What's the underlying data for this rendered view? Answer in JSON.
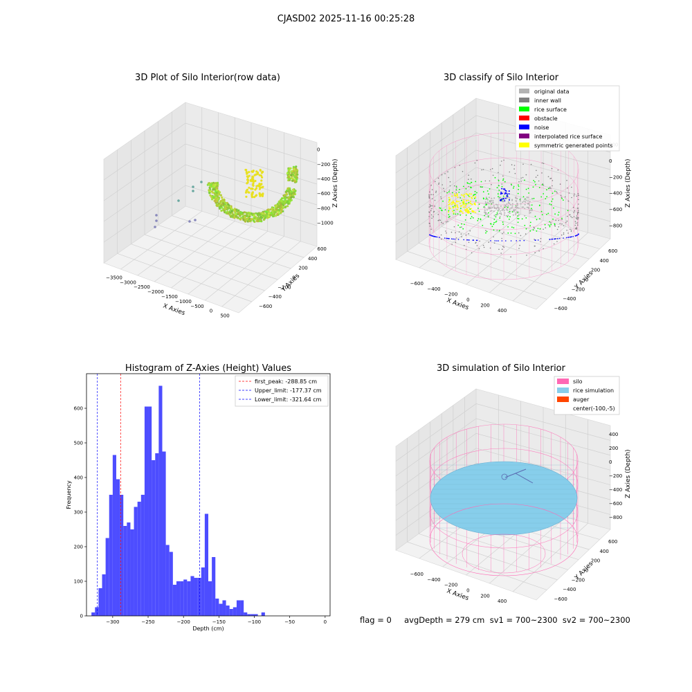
{
  "figure": {
    "suptitle": "CJASD02 2025-11-16 00:25:28",
    "footer": "flag = 0     avgDepth = 279 cm  sv1 = 700~2300  sv2 = 700~2300"
  },
  "colors": {
    "hist_bar": "#4d4dff",
    "first_peak": "#ff0000",
    "limit_line": "#0000ff",
    "silo": "#ff69b4",
    "rice_simulation": "#87ceeb",
    "auger": "#ff4500",
    "original_data": "#b3b3b3",
    "inner_wall": "#808080",
    "rice_surface": "#00ff00",
    "obstacle": "#ff0000",
    "noise": "#0000ff",
    "interpolated": "#800080",
    "symmetric": "#ffff00"
  },
  "chart_data": [
    {
      "type": "scatter",
      "projection": "3d",
      "title": "3D Plot of Silo Interior(row data)",
      "xlabel": "X Axies",
      "ylabel": "Y Axies",
      "zlabel": "Z Axies (Depth)",
      "xticks": [
        "−3500",
        "−3000",
        "−2500",
        "−2000",
        "−1500",
        "−1000",
        "−500",
        "0",
        "500"
      ],
      "yticks": [
        "−600",
        "−400",
        "−200",
        "0",
        "200",
        "400",
        "600"
      ],
      "zticks": [
        "0",
        "−200",
        "−400",
        "−600",
        "−800",
        "−1000"
      ],
      "grid": true
    },
    {
      "type": "scatter",
      "projection": "3d",
      "title": "3D classify of Silo Interior",
      "xlabel": "X Axies",
      "ylabel": "Y Axies",
      "zlabel": "Z Axies (Depth)",
      "xticks": [
        "−600",
        "−400",
        "−200",
        "0",
        "200",
        "400"
      ],
      "yticks": [
        "−600",
        "−400",
        "−200",
        "0",
        "200",
        "400",
        "600"
      ],
      "zticks": [
        "200",
        "0",
        "−200",
        "−400",
        "−600",
        "−800"
      ],
      "legend": [
        "original data",
        "inner wall",
        "rice surface",
        "obstacle",
        "noise",
        "interpolated rice surface",
        "symmetric generated points"
      ],
      "legend_placement": "top-right",
      "grid": true
    },
    {
      "type": "bar",
      "title": "Histogram of Z-Axies (Height) Values",
      "xlabel": "Depth (cm)",
      "ylabel": "Frequency",
      "bin_width": 5,
      "x_start": -330,
      "values": [
        10,
        25,
        80,
        120,
        225,
        350,
        465,
        395,
        350,
        260,
        270,
        250,
        315,
        330,
        350,
        605,
        605,
        450,
        470,
        665,
        475,
        205,
        185,
        90,
        100,
        100,
        105,
        100,
        115,
        110,
        110,
        140,
        295,
        100,
        170,
        50,
        35,
        45,
        30,
        20,
        25,
        45,
        45,
        10,
        5,
        5,
        5,
        0,
        10
      ],
      "xlim": [
        -337,
        7
      ],
      "ylim": [
        0,
        700
      ],
      "xticks": [
        -300,
        -250,
        -200,
        -150,
        -100,
        -50,
        0
      ],
      "yticks": [
        0,
        100,
        200,
        300,
        400,
        500,
        600
      ],
      "vlines": [
        {
          "label": "first_peak: -288.85 cm",
          "x": -288.85,
          "style": "dashed",
          "color": "red"
        },
        {
          "label": "Upper_limit: -177.37 cm",
          "x": -177.37,
          "style": "dashed",
          "color": "blue"
        },
        {
          "label": "Lower_limit: -321.64 cm",
          "x": -321.64,
          "style": "dashed",
          "color": "blue"
        }
      ],
      "legend_placement": "top-right",
      "grid": false
    },
    {
      "type": "scatter",
      "projection": "3d",
      "title": "3D simulation of Silo Interior",
      "xlabel": "X Axies",
      "ylabel": "Y Axies",
      "zlabel": "Z Axies (Depth)",
      "xticks": [
        "−600",
        "−400",
        "−200",
        "0",
        "200",
        "400"
      ],
      "yticks": [
        "−600",
        "−400",
        "−200",
        "0",
        "200",
        "400",
        "600"
      ],
      "zticks": [
        "400",
        "200",
        "0",
        "−200",
        "−400",
        "−600",
        "−800"
      ],
      "legend": [
        "silo",
        "rice simulation",
        "auger",
        "center(-100,-5)"
      ],
      "legend_placement": "top-right",
      "grid": true
    }
  ]
}
